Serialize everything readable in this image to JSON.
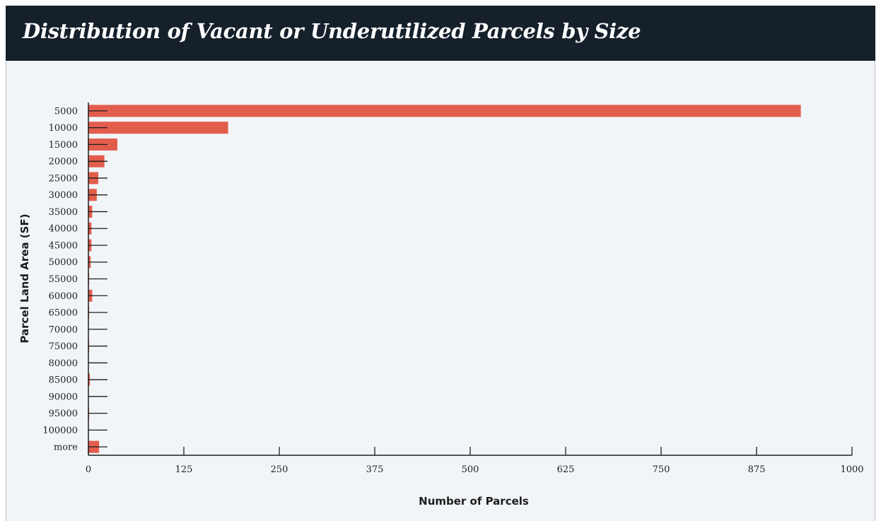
{
  "chart_data": {
    "type": "bar",
    "orientation": "horizontal",
    "title": "Distribution of Vacant or Underutilized Parcels by Size",
    "xlabel": "Number of Parcels",
    "ylabel": "Parcel Land Area (SF)",
    "categories": [
      "5000",
      "10000",
      "15000",
      "20000",
      "25000",
      "30000",
      "35000",
      "40000",
      "45000",
      "50000",
      "55000",
      "60000",
      "65000",
      "70000",
      "75000",
      "80000",
      "85000",
      "90000",
      "95000",
      "100000",
      "more"
    ],
    "values": [
      933,
      183,
      38,
      21,
      13,
      11,
      5,
      4,
      4,
      3,
      1,
      5,
      1,
      0,
      1,
      0,
      2,
      0,
      1,
      0,
      14
    ],
    "xlim": [
      0,
      1000
    ],
    "xticks": [
      "0",
      "125",
      "250",
      "375",
      "500",
      "625",
      "750",
      "875",
      "1000"
    ],
    "bar_color": "#e35d4d",
    "grid": false
  }
}
